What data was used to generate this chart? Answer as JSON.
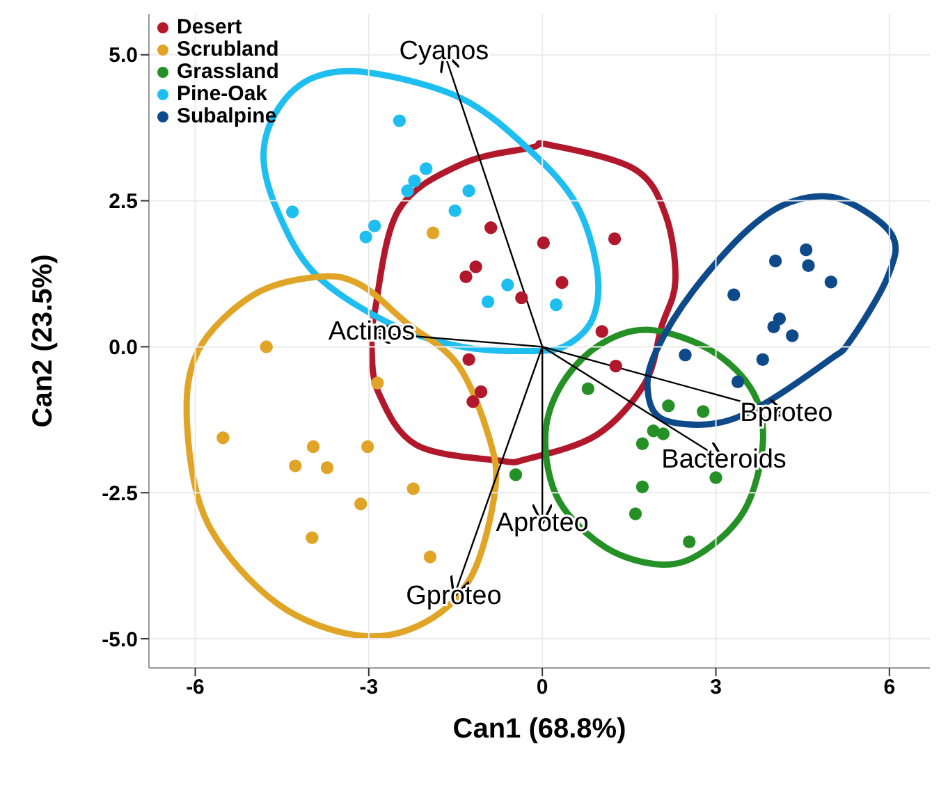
{
  "chart_data": {
    "type": "scatter",
    "xlabel": "Can1 (68.8%)",
    "ylabel": "Can2 (23.5%)",
    "xlim": [
      -6.8,
      6.7
    ],
    "ylim": [
      -5.5,
      5.7
    ],
    "xticks": [
      -6,
      -3,
      0,
      3,
      6
    ],
    "yticks": [
      {
        "value": -5,
        "label": "-5.0"
      },
      {
        "value": -2.5,
        "label": "-2.5"
      },
      {
        "value": 0,
        "label": "0.0"
      },
      {
        "value": 2.5,
        "label": "2.5"
      },
      {
        "value": 5,
        "label": "5.0"
      }
    ],
    "grid": true,
    "legend": "top left",
    "marker": "circle",
    "series": [
      {
        "name": "Desert",
        "color": "#b2182b",
        "x": [
          -0.89,
          0.02,
          1.25,
          -1.15,
          -1.32,
          -0.36,
          0.34,
          1.03,
          1.27,
          -1.27,
          -1.06,
          -1.2
        ],
        "values": [
          2.04,
          1.78,
          1.85,
          1.37,
          1.2,
          0.84,
          1.1,
          0.26,
          -0.33,
          -0.22,
          -0.77,
          -0.94
        ]
      },
      {
        "name": "Scrubland",
        "color": "#e0a526",
        "x": [
          -1.89,
          -4.77,
          -2.85,
          -5.52,
          -3.96,
          -3.02,
          -4.27,
          -3.72,
          -2.23,
          -3.14,
          -3.98,
          -1.94
        ],
        "values": [
          1.95,
          0,
          -0.62,
          -1.56,
          -1.71,
          -1.71,
          -2.04,
          -2.07,
          -2.43,
          -2.69,
          -3.27,
          -3.6
        ]
      },
      {
        "name": "Grassland",
        "color": "#259025",
        "x": [
          -0.46,
          0.79,
          2.18,
          2.78,
          1.92,
          2.09,
          1.73,
          3.0,
          1.73,
          1.61,
          2.54
        ],
        "values": [
          -2.19,
          -0.72,
          -1.01,
          -1.11,
          -1.44,
          -1.49,
          -1.66,
          -2.24,
          -2.4,
          -2.86,
          -3.34
        ]
      },
      {
        "name": "Pine-Oak",
        "color": "#1ebff0",
        "x": [
          -2.47,
          -2.01,
          -2.21,
          -2.33,
          -1.27,
          -4.32,
          -1.51,
          -2.9,
          -3.05,
          -0.6,
          -0.94,
          0.24
        ],
        "values": [
          3.87,
          3.05,
          2.84,
          2.67,
          2.67,
          2.31,
          2.33,
          2.07,
          1.88,
          1.06,
          0.77,
          0.72
        ]
      },
      {
        "name": "Subalpine",
        "color": "#0e4a8a",
        "x": [
          4.56,
          4.03,
          4.6,
          4.99,
          3.31,
          4.1,
          4.0,
          4.32,
          2.47,
          3.81,
          3.38
        ],
        "values": [
          1.66,
          1.47,
          1.39,
          1.11,
          0.89,
          0.48,
          0.34,
          0.19,
          -0.14,
          -0.22,
          -0.6
        ]
      },
      {
        "type": "line",
        "marker": "none",
        "name": "Cyanos",
        "color": "#000000",
        "x": [
          0,
          -1.7
        ],
        "values": [
          0,
          5.05
        ]
      },
      {
        "type": "line",
        "marker": "none",
        "name": "Actinos",
        "color": "#000000",
        "x": [
          0,
          -2.95
        ],
        "values": [
          0,
          0.24
        ]
      },
      {
        "type": "line",
        "marker": "none",
        "name": "Bproteo",
        "color": "#000000",
        "x": [
          0,
          4.22
        ],
        "values": [
          0,
          -1.15
        ]
      },
      {
        "type": "line",
        "marker": "none",
        "name": "Bacteroids",
        "color": "#000000",
        "x": [
          0,
          3.14
        ],
        "values": [
          0,
          -1.95
        ]
      },
      {
        "type": "line",
        "marker": "none",
        "name": "Aproteo",
        "color": "#000000",
        "x": [
          0,
          0
        ],
        "values": [
          0,
          -3.03
        ]
      },
      {
        "type": "line",
        "marker": "none",
        "name": "Gproteo",
        "color": "#000000",
        "x": [
          0,
          -1.53
        ],
        "values": [
          0,
          -4.28
        ]
      }
    ]
  }
}
